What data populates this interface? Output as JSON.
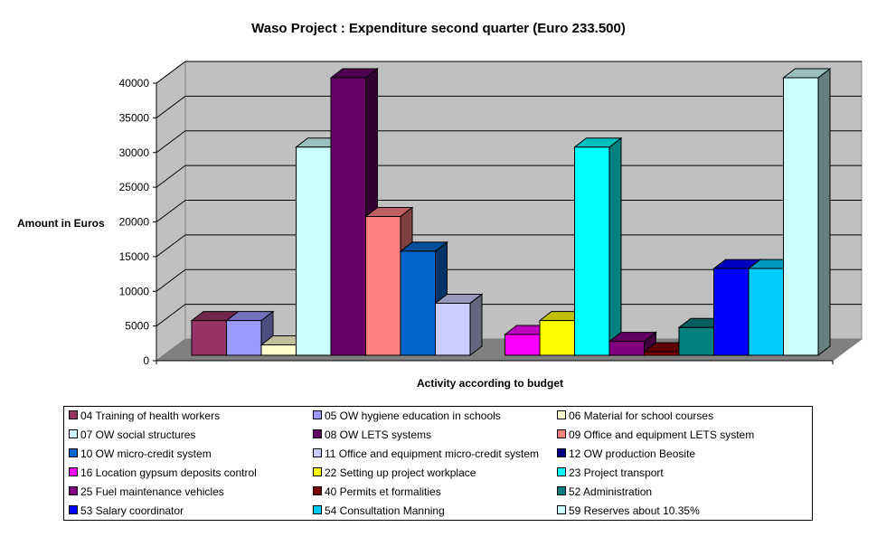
{
  "chart_data": {
    "type": "bar",
    "title": "Waso Project : Expenditure second quarter (Euro 233.500)",
    "xlabel": "Activity according to budget",
    "ylabel": "Amount in Euros",
    "ylim": [
      0,
      40000
    ],
    "yticks": [
      "0",
      "5000",
      "10000",
      "15000",
      "20000",
      "25000",
      "30000",
      "35000",
      "40000"
    ],
    "ytick_values": [
      0,
      5000,
      10000,
      15000,
      20000,
      25000,
      30000,
      35000,
      40000
    ],
    "grid": true,
    "legend_position": "bottom",
    "series": [
      {
        "name": "04 Training of health workers",
        "value": 5000,
        "color": "#993366"
      },
      {
        "name": "05 OW hygiene education in schools",
        "value": 5000,
        "color": "#9999FF"
      },
      {
        "name": "06 Material for school courses",
        "value": 1500,
        "color": "#FFFFCC"
      },
      {
        "name": "07 OW social structures",
        "value": 30000,
        "color": "#CCFFFF"
      },
      {
        "name": "08 OW LETS systems",
        "value": 40000,
        "color": "#660066"
      },
      {
        "name": "09 Office and equipment LETS system",
        "value": 20000,
        "color": "#FF8080"
      },
      {
        "name": "10 OW micro-credit system",
        "value": 15000,
        "color": "#0066CC"
      },
      {
        "name": "11 Office and equipment micro-credit system",
        "value": 7500,
        "color": "#CCCCFF"
      },
      {
        "name": "12 OW  production Beosite",
        "value": 0,
        "color": "#000080"
      },
      {
        "name": "16 Location gypsum deposits control",
        "value": 3000,
        "color": "#FF00FF"
      },
      {
        "name": "22 Setting up project workplace",
        "value": 5000,
        "color": "#FFFF00"
      },
      {
        "name": "23 Project transport",
        "value": 30000,
        "color": "#00FFFF"
      },
      {
        "name": "25 Fuel maintenance vehicles",
        "value": 2000,
        "color": "#800080"
      },
      {
        "name": "40 Permits et formalities",
        "value": 500,
        "color": "#800000"
      },
      {
        "name": "52 Administration",
        "value": 4000,
        "color": "#008080"
      },
      {
        "name": "53 Salary coordinator",
        "value": 12500,
        "color": "#0000FF"
      },
      {
        "name": "54 Consultation Manning",
        "value": 12500,
        "color": "#00CCFF"
      },
      {
        "name": "59 Reserves about 10.35%",
        "value": 40000,
        "color": "#CCFFFF"
      }
    ]
  }
}
